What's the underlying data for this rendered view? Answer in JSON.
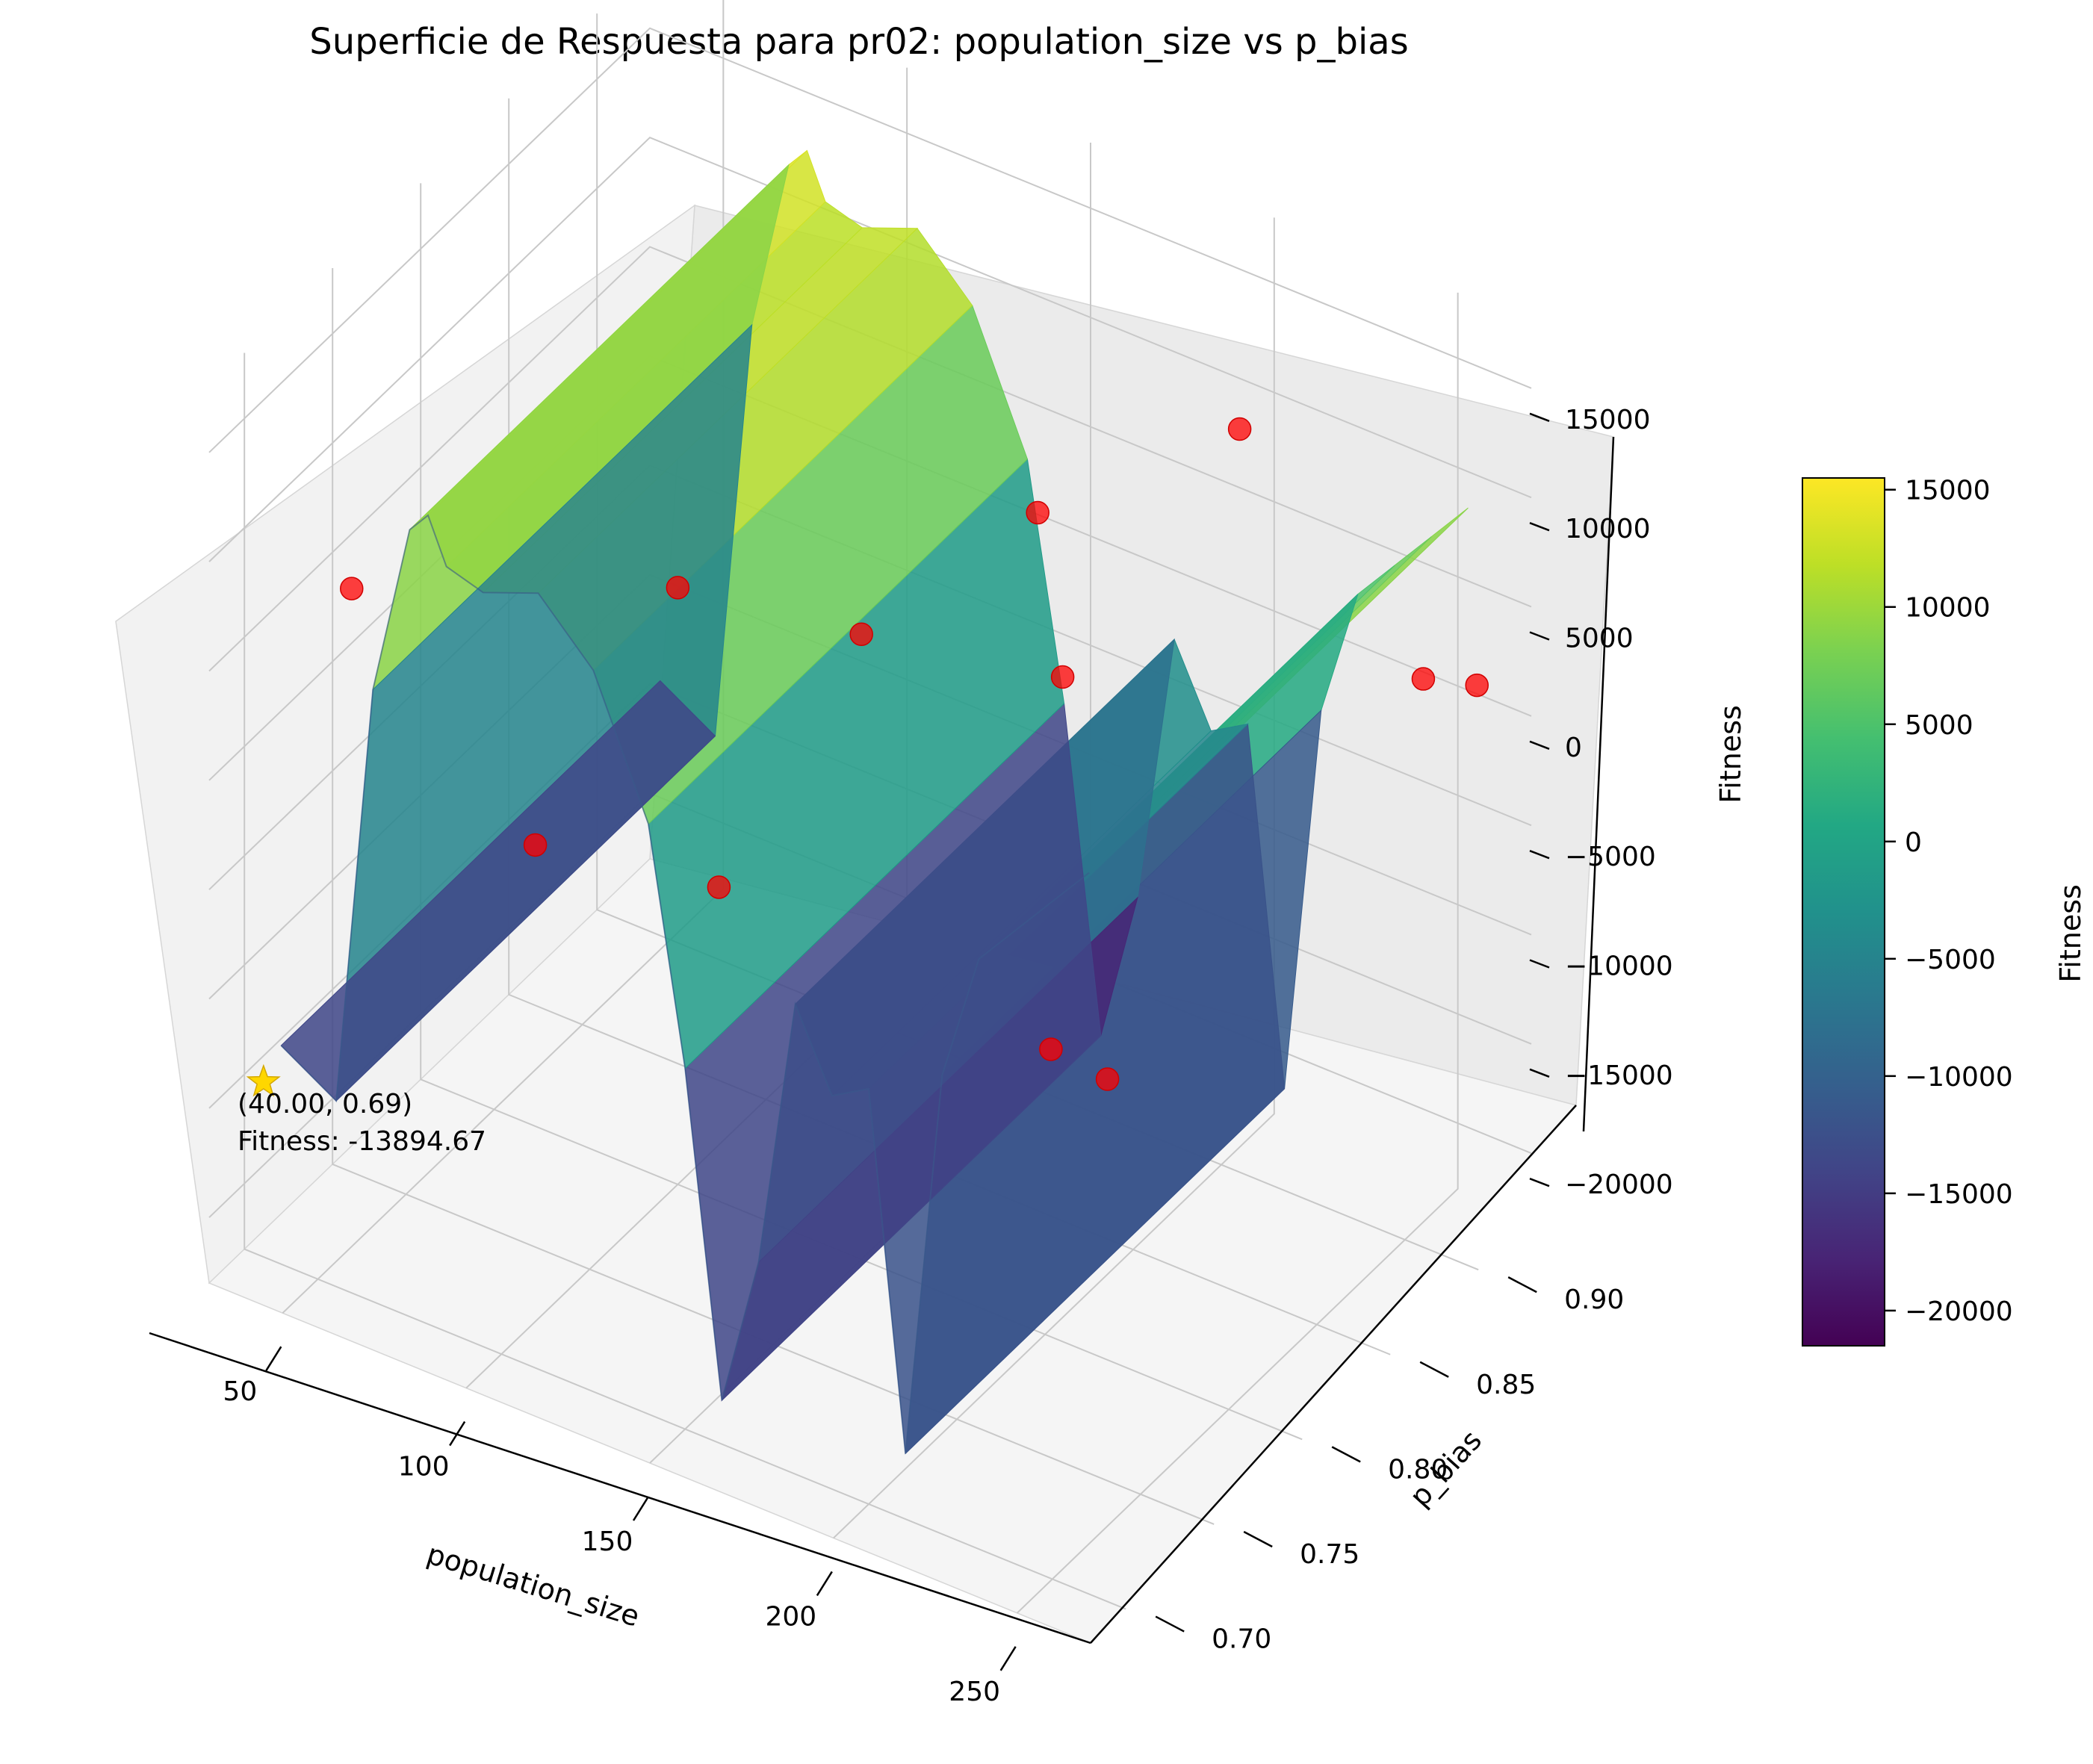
{
  "chart_data": {
    "type": "surface3d",
    "title": "Superficie de Respuesta para pr02: population_size vs p_bias",
    "xlabel": "population_size",
    "ylabel": "p_bias",
    "zlabel": "Fitness",
    "colorbar_label": "Fitness",
    "colormap": "viridis",
    "xlim": [
      30,
      270
    ],
    "ylim": [
      0.68,
      0.93
    ],
    "zlim": [
      -23000,
      18000
    ],
    "x_ticks": [
      "50",
      "100",
      "150",
      "200",
      "250"
    ],
    "y_ticks": [
      "0.70",
      "0.75",
      "0.80",
      "0.85",
      "0.90"
    ],
    "z_ticks": [
      "−20000",
      "−15000",
      "−10000",
      "−5000",
      "0",
      "5000",
      "10000",
      "15000"
    ],
    "colorbar_ticks": [
      "−20000",
      "−15000",
      "−10000",
      "−5000",
      "0",
      "5000",
      "10000",
      "15000"
    ],
    "colorbar_range": [
      -21500,
      15500
    ],
    "grid": true,
    "surface_profile": {
      "x": [
        40,
        55,
        65,
        75,
        80,
        85,
        95,
        110,
        125,
        140,
        150,
        160,
        170,
        180,
        190,
        200,
        210,
        220,
        230,
        240,
        250,
        260
      ],
      "fitness": [
        -13000,
        -14500,
        5000,
        13000,
        14000,
        12000,
        11500,
        12500,
        10000,
        4000,
        -6500,
        -21000,
        -14000,
        -1500,
        -5000,
        -4000,
        -20000,
        -2000,
        4000,
        6000,
        8000,
        10000
      ]
    },
    "scatter_points": [
      {
        "x": 40,
        "y": 0.74,
        "fitness": 4800
      },
      {
        "x": 90,
        "y": 0.74,
        "fitness": -3500
      },
      {
        "x": 100,
        "y": 0.8,
        "fitness": 4300
      },
      {
        "x": 140,
        "y": 0.74,
        "fitness": -2000
      },
      {
        "x": 150,
        "y": 0.8,
        "fitness": 5600
      },
      {
        "x": 150,
        "y": 0.9,
        "fitness": 3400
      },
      {
        "x": 200,
        "y": 0.81,
        "fitness": 6300
      },
      {
        "x": 205,
        "y": 0.9,
        "fitness": 11000
      },
      {
        "x": 240,
        "y": 0.72,
        "fitness": -1000
      },
      {
        "x": 255,
        "y": 0.9,
        "fitness": 3000
      },
      {
        "x": 265,
        "y": 0.7,
        "fitness": 900
      },
      {
        "x": 260,
        "y": 0.92,
        "fitness": 1500
      }
    ],
    "best_point": {
      "x": 40.0,
      "y": 0.69,
      "fitness": -13894.67,
      "marker": "star",
      "color": "#FFD700"
    },
    "annotation": {
      "line1": "(40.00, 0.69)",
      "line2": "Fitness: -13894.67"
    }
  }
}
